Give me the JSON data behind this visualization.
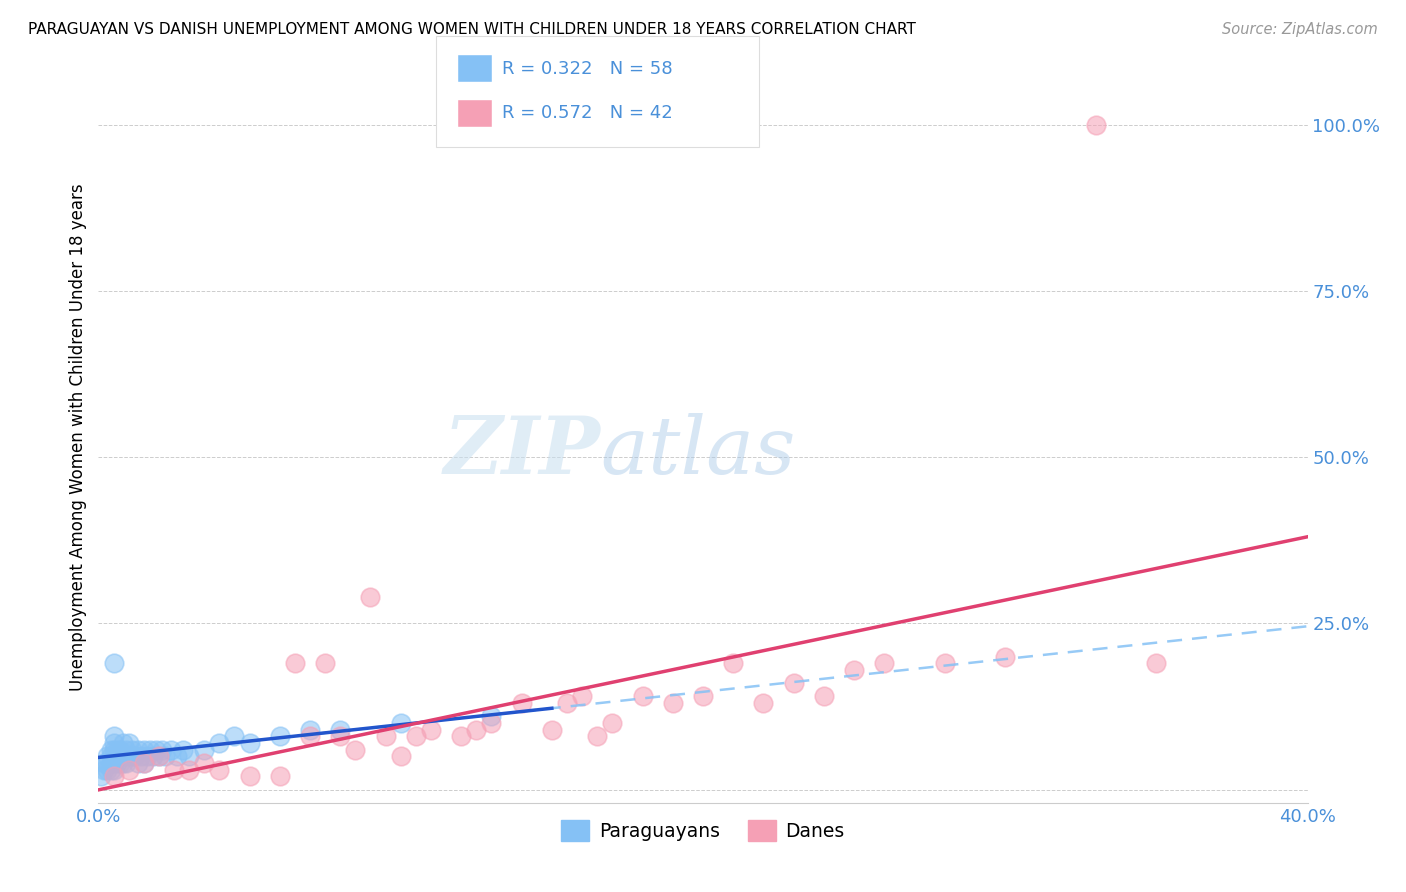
{
  "title": "PARAGUAYAN VS DANISH UNEMPLOYMENT AMONG WOMEN WITH CHILDREN UNDER 18 YEARS CORRELATION CHART",
  "source": "Source: ZipAtlas.com",
  "ylabel": "Unemployment Among Women with Children Under 18 years",
  "xlim": [
    0.0,
    0.4
  ],
  "ylim": [
    -0.02,
    1.08
  ],
  "yticks": [
    0.0,
    0.25,
    0.5,
    0.75,
    1.0
  ],
  "ytick_labels": [
    "",
    "25.0%",
    "50.0%",
    "75.0%",
    "100.0%"
  ],
  "paraguayan_color": "#85c1f5",
  "danish_color": "#f5a0b5",
  "trend_blue_solid": "#2255cc",
  "trend_pink_solid": "#e04070",
  "trend_blue_dashed": "#85c1f5",
  "watermark_zip": "ZIP",
  "watermark_atlas": "atlas",
  "paraguayan_x": [
    0.001,
    0.002,
    0.002,
    0.003,
    0.003,
    0.003,
    0.004,
    0.004,
    0.004,
    0.004,
    0.005,
    0.005,
    0.005,
    0.005,
    0.005,
    0.005,
    0.005,
    0.006,
    0.006,
    0.006,
    0.007,
    0.007,
    0.007,
    0.008,
    0.008,
    0.008,
    0.009,
    0.009,
    0.01,
    0.01,
    0.011,
    0.011,
    0.012,
    0.013,
    0.013,
    0.014,
    0.015,
    0.015,
    0.016,
    0.017,
    0.018,
    0.019,
    0.02,
    0.021,
    0.022,
    0.024,
    0.026,
    0.028,
    0.03,
    0.035,
    0.04,
    0.045,
    0.05,
    0.06,
    0.07,
    0.08,
    0.1,
    0.13
  ],
  "paraguayan_y": [
    0.02,
    0.03,
    0.04,
    0.03,
    0.04,
    0.05,
    0.03,
    0.04,
    0.05,
    0.06,
    0.03,
    0.04,
    0.05,
    0.06,
    0.07,
    0.08,
    0.19,
    0.04,
    0.05,
    0.06,
    0.04,
    0.05,
    0.06,
    0.04,
    0.05,
    0.07,
    0.04,
    0.06,
    0.05,
    0.07,
    0.05,
    0.06,
    0.05,
    0.04,
    0.06,
    0.05,
    0.04,
    0.06,
    0.05,
    0.06,
    0.05,
    0.06,
    0.05,
    0.06,
    0.05,
    0.06,
    0.05,
    0.06,
    0.05,
    0.06,
    0.07,
    0.08,
    0.07,
    0.08,
    0.09,
    0.09,
    0.1,
    0.11
  ],
  "danish_x": [
    0.005,
    0.01,
    0.015,
    0.02,
    0.025,
    0.03,
    0.035,
    0.04,
    0.05,
    0.06,
    0.065,
    0.07,
    0.075,
    0.08,
    0.085,
    0.09,
    0.095,
    0.1,
    0.105,
    0.11,
    0.12,
    0.125,
    0.13,
    0.14,
    0.15,
    0.155,
    0.16,
    0.165,
    0.17,
    0.18,
    0.19,
    0.2,
    0.21,
    0.22,
    0.23,
    0.24,
    0.25,
    0.26,
    0.28,
    0.3,
    0.33,
    0.35
  ],
  "danish_y": [
    0.02,
    0.03,
    0.04,
    0.05,
    0.03,
    0.03,
    0.04,
    0.03,
    0.02,
    0.02,
    0.19,
    0.08,
    0.19,
    0.08,
    0.06,
    0.29,
    0.08,
    0.05,
    0.08,
    0.09,
    0.08,
    0.09,
    0.1,
    0.13,
    0.09,
    0.13,
    0.14,
    0.08,
    0.1,
    0.14,
    0.13,
    0.14,
    0.19,
    0.13,
    0.16,
    0.14,
    0.18,
    0.19,
    0.19,
    0.2,
    1.0,
    0.19
  ]
}
